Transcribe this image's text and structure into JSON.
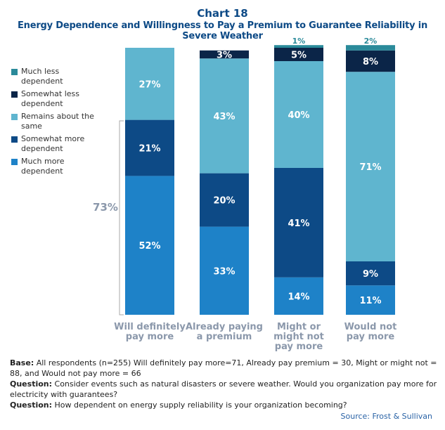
{
  "title": "Chart 18",
  "subtitle": "Energy Dependence and Willingness to Pay a Premium to Guarantee Reliability in Severe Weather",
  "chart_data": {
    "type": "stacked-bar",
    "categories": [
      "Will definitely pay more",
      "Already paying a premium",
      "Might or might not pay more",
      "Would not pay more"
    ],
    "series": [
      {
        "name": "Much more dependent",
        "color": "#1e82c8",
        "values": [
          52,
          33,
          14,
          11
        ]
      },
      {
        "name": "Somewhat more dependent",
        "color": "#0d4a86",
        "values": [
          21,
          20,
          41,
          9
        ]
      },
      {
        "name": "Remains about the same",
        "color": "#5fb5cf",
        "values": [
          27,
          43,
          40,
          71
        ]
      },
      {
        "name": "Somewhat less dependent",
        "color": "#0b2548",
        "values": [
          0,
          3,
          5,
          8
        ]
      },
      {
        "name": "Much less dependent",
        "color": "#2a8a9a",
        "values": [
          0,
          0,
          1,
          2
        ]
      }
    ],
    "legend_order": [
      "Much less dependent",
      "Somewhat less dependent",
      "Remains about the same",
      "Somewhat more dependent",
      "Much more dependent"
    ],
    "legend_position": "left",
    "annotation": "73%",
    "ylim": [
      0,
      100
    ]
  },
  "notes": {
    "base_label": "Base:",
    "base_text": " All respondents (n=255) Will definitely pay more=71, Already pay premium = 30, Might or might not = 88, and Would not pay more = 66",
    "q1_label": "Question:",
    "q1_text": " Consider events such as natural disasters or severe weather. Would you organization pay more for electricity with guarantees?",
    "q2_label": "Question:",
    "q2_text": " How dependent on energy supply reliability is your organization becoming?"
  },
  "source": "Source: Frost & Sullivan"
}
